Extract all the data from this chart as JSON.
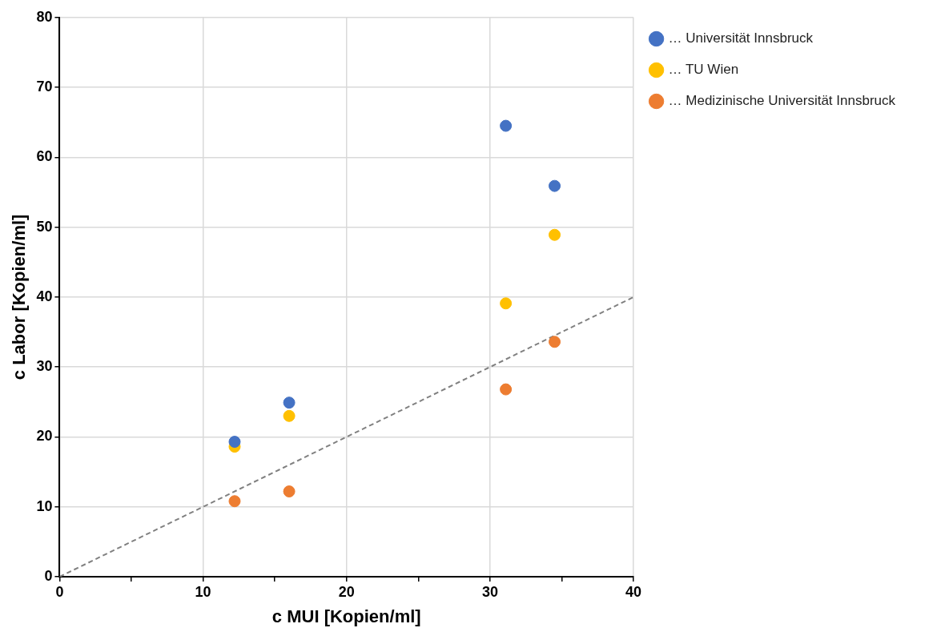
{
  "chart_data": {
    "type": "scatter",
    "xlabel": "c MUI [Kopien/ml]",
    "ylabel": "c Labor [Kopien/ml]",
    "xlim": [
      0,
      40
    ],
    "xticks": [
      0,
      {
        "value": 5,
        "label": null
      },
      10,
      {
        "value": 15,
        "label": null
      },
      20,
      {
        "value": 25,
        "label": null
      },
      30,
      {
        "value": 35,
        "label": null
      },
      40
    ],
    "ylim": [
      0,
      80
    ],
    "yticks": [
      0,
      10,
      20,
      30,
      40,
      50,
      60,
      70,
      80
    ],
    "grid": true,
    "legend": "top right",
    "marker": "circle",
    "series": [
      {
        "name": "… Universität Innsbruck",
        "color": "#4472c4",
        "x": [
          12.2,
          16.0,
          31.1,
          34.5
        ],
        "values": [
          19.3,
          24.9,
          64.5,
          55.9
        ]
      },
      {
        "name": "… TU Wien",
        "color": "#ffc000",
        "x": [
          12.2,
          16.0,
          31.1,
          34.5
        ],
        "values": [
          18.6,
          23.0,
          39.1,
          48.9
        ]
      },
      {
        "name": "… Medizinische Universität Innsbruck",
        "color": "#ed7d31",
        "x": [
          12.2,
          16.0,
          31.1,
          34.5
        ],
        "values": [
          10.8,
          12.2,
          26.8,
          33.6
        ]
      },
      {
        "type": "line",
        "color": "#808080",
        "line_style": "dashed",
        "marker": "none",
        "x": [
          0,
          40
        ],
        "values": [
          0,
          40
        ]
      }
    ]
  }
}
